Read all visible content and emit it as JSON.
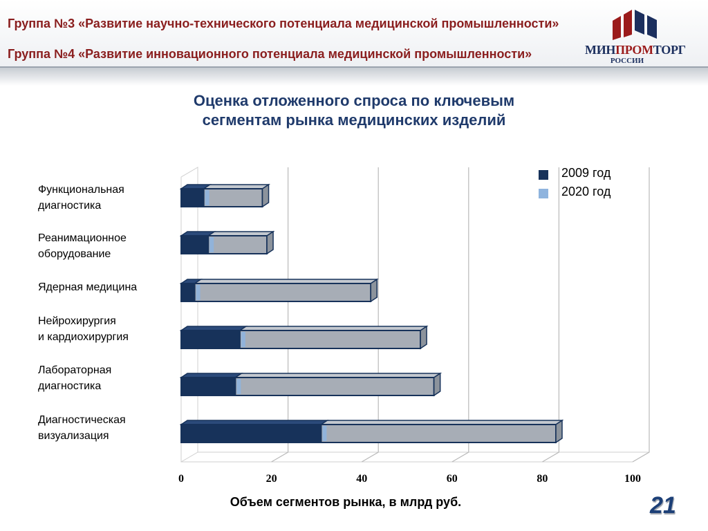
{
  "header": {
    "line1": "Группа №3 «Развитие научно-технического  потенциала медицинской промышленности»",
    "line2": "Группа №4 «Развитие  инновационного потенциала медицинской промышленности»"
  },
  "logo": {
    "word_part1": "МИН",
    "word_part2": "ПРОМ",
    "word_part3": "ТОРГ",
    "subtitle": "РОССИИ"
  },
  "chart_data": {
    "type": "bar",
    "orientation": "horizontal",
    "stacked": true,
    "title_line1": "Оценка отложенного спроса по ключевым",
    "title_line2": "сегментам рынка медицинских изделий",
    "xlabel": "Объем сегментов  рынка, в млрд руб.",
    "ylabel": "",
    "xlim": [
      0,
      100
    ],
    "x_ticks": [
      0,
      20,
      40,
      60,
      80,
      100
    ],
    "grid": true,
    "legend_position": "top-right",
    "categories": [
      {
        "line1": "Функциональная",
        "line2": "диагностика"
      },
      {
        "line1": "Реанимационное",
        "line2": "оборудование"
      },
      {
        "line1": "Ядерная медицина",
        "line2": ""
      },
      {
        "line1": "Нейрохирургия",
        "line2": "и кардиохирургия"
      },
      {
        "line1": "Лабораторная",
        "line2": "диагностика"
      },
      {
        "line1": "Диагностическая",
        "line2": "визуализация"
      }
    ],
    "series": [
      {
        "name": "2009 год",
        "color": "#17325a",
        "values": [
          5,
          6,
          3,
          13,
          12,
          31
        ]
      },
      {
        "name": "2020 год",
        "color": "#8fb4de",
        "values": [
          13,
          13,
          39,
          40,
          44,
          52
        ]
      }
    ]
  },
  "page_number": "21"
}
